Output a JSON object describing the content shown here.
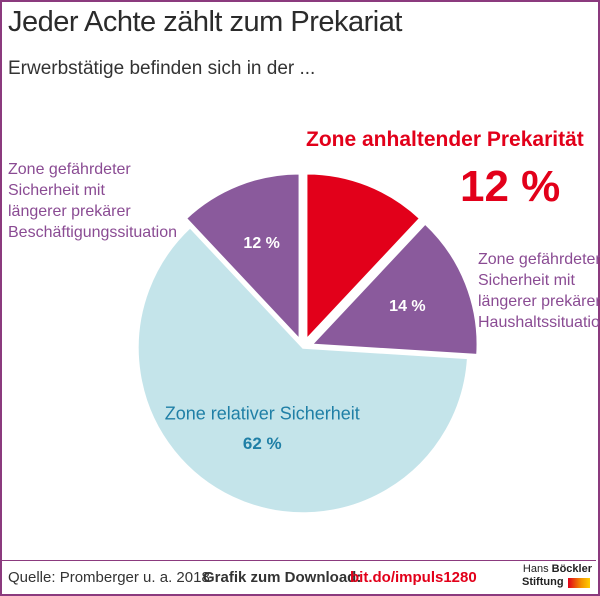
{
  "header": {
    "title": "Jeder Achte zählt zum Prekariat",
    "subtitle": "Erwerbstätige befinden sich in der ..."
  },
  "chart_data": {
    "type": "pie",
    "title": "Jeder Achte zählt zum Prekariat",
    "subtitle": "Erwerbstätige befinden sich in der ...",
    "slices": [
      {
        "label": "Zone anhaltender Prekarität",
        "value": 12,
        "value_label": "12 %",
        "color": "#e2001a",
        "exploded": true
      },
      {
        "label": "Zone gefährdeter Sicherheit mit längerer prekärer Haushaltssituation",
        "value": 14,
        "value_label": "14 %",
        "color": "#8a5a9c",
        "exploded": true
      },
      {
        "label": "Zone relativer Sicherheit",
        "value": 62,
        "value_label": "62 %",
        "color": "#c4e4ea",
        "exploded": false
      },
      {
        "label": "Zone gefährdeter Sicherheit mit längerer prekärer Beschäftigungssituation",
        "value": 12,
        "value_label": "12 %",
        "color": "#8a5a9c",
        "exploded": true
      }
    ]
  },
  "labels": {
    "red_title": "Zone anhaltender Prekarität",
    "red_pct": "12 %",
    "haushalt_lines": [
      "Zone gefährdeter",
      "Sicherheit mit",
      "längerer prekärer",
      "Haushaltssituation"
    ],
    "beschaeftigung_lines": [
      "Zone gefährdeter",
      "Sicherheit mit",
      "längerer prekärer",
      "Beschäftigungssituation"
    ],
    "relative_title": "Zone relativer Sicherheit"
  },
  "footer": {
    "source": "Quelle: Promberger u. a. 2018",
    "download_label": "Grafik zum Download:",
    "download_link": "bit.do/impuls1280",
    "logo_line1_a": "Hans",
    "logo_line1_b": "Böckler",
    "logo_line2": "Stiftung"
  },
  "colors": {
    "frame": "#8b3a7e",
    "red": "#e2001a",
    "purple": "#8a5a9c",
    "light_blue": "#c4e4ea",
    "blue_text": "#1f7fa6"
  }
}
